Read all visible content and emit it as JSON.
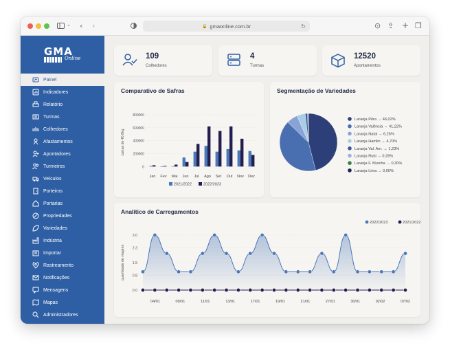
{
  "browser": {
    "url": "gmaonline.com.br"
  },
  "brand": {
    "name": "GMA",
    "tagline": "Online"
  },
  "sidebar": {
    "items": [
      {
        "label": "Painel",
        "icon": "dashboard-icon"
      },
      {
        "label": "Indicadores",
        "icon": "chart-icon"
      },
      {
        "label": "Relatório",
        "icon": "printer-icon"
      },
      {
        "label": "Turmas",
        "icon": "group-icon"
      },
      {
        "label": "Colhedores",
        "icon": "people-icon"
      },
      {
        "label": "Afastamentos",
        "icon": "leave-icon"
      },
      {
        "label": "Apontadores",
        "icon": "pointer-icon"
      },
      {
        "label": "Turmeiros",
        "icon": "leader-icon"
      },
      {
        "label": "Veículos",
        "icon": "truck-icon"
      },
      {
        "label": "Porteiros",
        "icon": "door-icon"
      },
      {
        "label": "Portarias",
        "icon": "home-icon"
      },
      {
        "label": "Propriedades",
        "icon": "property-icon"
      },
      {
        "label": "Variedades",
        "icon": "leaf-icon"
      },
      {
        "label": "Indústria",
        "icon": "factory-icon"
      },
      {
        "label": "Importar",
        "icon": "import-icon"
      },
      {
        "label": "Rastreamento",
        "icon": "location-icon"
      },
      {
        "label": "Notificações",
        "icon": "mail-icon"
      },
      {
        "label": "Mensagens",
        "icon": "message-icon"
      },
      {
        "label": "Mapas",
        "icon": "map-icon"
      },
      {
        "label": "Administradores",
        "icon": "admin-icon"
      }
    ]
  },
  "stats": [
    {
      "value": "109",
      "label": "Colhedores",
      "icon": "user-check-icon"
    },
    {
      "value": "4",
      "label": "Turmas",
      "icon": "server-icon"
    },
    {
      "value": "12520",
      "label": "Apontamentos",
      "icon": "box-icon"
    }
  ],
  "colors": {
    "primary": "#2e5fa4",
    "dark": "#231e4e",
    "mid": "#4a78b8",
    "light": "#8fb3dd"
  },
  "chart_data": [
    {
      "type": "bar",
      "title": "Comparativo de Safras",
      "ylabel": "caixas de 40.8kg",
      "categories": [
        "Jan",
        "Fev",
        "Mai",
        "Jun",
        "Jul",
        "Ago",
        "Set",
        "Out",
        "Nov",
        "Dez"
      ],
      "yticks": [
        "800000",
        "600000",
        "400000",
        "200000",
        "0"
      ],
      "ylim": [
        -50000,
        800000
      ],
      "series": [
        {
          "name": "2021/2022",
          "color": "#4a78b8",
          "values": [
            10000,
            0,
            5000,
            140000,
            230000,
            320000,
            230000,
            270000,
            250000,
            240000
          ]
        },
        {
          "name": "2022/2023",
          "color": "#231e4e",
          "values": [
            20000,
            10000,
            30000,
            70000,
            350000,
            620000,
            550000,
            620000,
            430000,
            180000
          ]
        }
      ],
      "legend": "bottom"
    },
    {
      "type": "pie",
      "title": "Segmentação de Variedades",
      "slices": [
        {
          "label": "Laranja Pêra → 46,02%",
          "value": 46.02,
          "color": "#2c3f78"
        },
        {
          "label": "Laranja Valência → 41,22%",
          "value": 41.22,
          "color": "#4a6fb0"
        },
        {
          "label": "Laranja Natal → 6,26%",
          "value": 6.26,
          "color": "#8aa3d6"
        },
        {
          "label": "Laranja Hamlin → 4,70%",
          "value": 4.7,
          "color": "#a9cde8"
        },
        {
          "label": "Laranja Val. Am. → 1,23%",
          "value": 1.23,
          "color": "#3a5a96"
        },
        {
          "label": "Laranja Rubi → 0,26%",
          "value": 0.26,
          "color": "#9bb2da"
        },
        {
          "label": "Laranja F. Murcha → 0,30%",
          "value": 0.3,
          "color": "#35804a"
        },
        {
          "label": "Laranja Lima → 0,00%",
          "value": 0.0,
          "color": "#1e2650"
        }
      ],
      "legend": "right"
    },
    {
      "type": "area",
      "title": "Analítico de Carregamentos",
      "ylabel": "quantidade de viagens",
      "yticks": [
        "3.0",
        "2.3",
        "1.5",
        "0.8",
        "0.0"
      ],
      "ylim": [
        0,
        3
      ],
      "xticks": [
        "04/01",
        "09/01",
        "11/01",
        "13/01",
        "17/01",
        "19/01",
        "21/01",
        "27/01",
        "30/01",
        "02/02",
        "07/02"
      ],
      "series": [
        {
          "name": "2022/2023",
          "color": "#4a78b8",
          "values": [
            1,
            3,
            2,
            1,
            1,
            2,
            3,
            2,
            1,
            2,
            3,
            2,
            1,
            1,
            1,
            2,
            1,
            3,
            1,
            1,
            1,
            1,
            2
          ]
        },
        {
          "name": "2021/2022",
          "color": "#231e4e",
          "values": [
            0,
            0,
            0,
            0,
            0,
            0,
            0,
            0,
            0,
            0,
            0,
            0,
            0,
            0,
            0,
            0,
            0,
            0,
            0,
            0,
            0,
            0,
            0
          ]
        }
      ],
      "legend": "top-right"
    }
  ]
}
